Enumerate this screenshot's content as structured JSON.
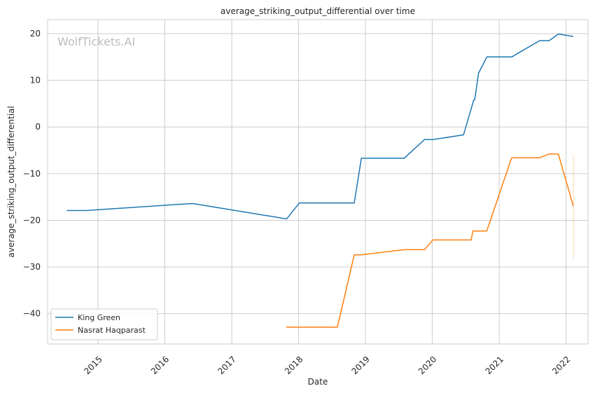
{
  "chart_data": {
    "type": "line",
    "title": "average_striking_output_differential over time",
    "xlabel": "Date",
    "ylabel": "average_striking_output_differential",
    "watermark": "WolfTickets.AI",
    "x_ticks": [
      "2015",
      "2016",
      "2017",
      "2018",
      "2019",
      "2020",
      "2021",
      "2022"
    ],
    "y_ticks": [
      20,
      10,
      0,
      -10,
      -20,
      -30,
      -40
    ],
    "xlim": [
      "2014-04-01",
      "2022-05-01"
    ],
    "ylim": [
      -46.5,
      23
    ],
    "grid": true,
    "legend_position": "lower-left",
    "series": [
      {
        "name": "King Green",
        "color": "#1f77b4",
        "points": [
          [
            "2014-07-15",
            -17.9
          ],
          [
            "2014-11-01",
            -17.9
          ],
          [
            "2016-06-01",
            -16.4
          ],
          [
            "2017-10-28",
            -19.7
          ],
          [
            "2018-01-05",
            -16.3
          ],
          [
            "2018-11-01",
            -16.3
          ],
          [
            "2018-12-10",
            -6.7
          ],
          [
            "2019-08-01",
            -6.7
          ],
          [
            "2019-11-20",
            -2.7
          ],
          [
            "2020-01-05",
            -2.7
          ],
          [
            "2020-06-20",
            -1.7
          ],
          [
            "2020-08-15",
            5.8
          ],
          [
            "2020-08-20",
            5.8
          ],
          [
            "2020-09-10",
            11.5
          ],
          [
            "2020-10-25",
            15.0
          ],
          [
            "2021-03-10",
            15.0
          ],
          [
            "2021-08-10",
            18.5
          ],
          [
            "2021-10-01",
            18.5
          ],
          [
            "2021-11-20",
            19.9
          ],
          [
            "2022-02-10",
            19.4
          ]
        ]
      },
      {
        "name": "Nasrat Haqparast",
        "color": "#ff7f0e",
        "points": [
          [
            "2017-10-25",
            -42.9
          ],
          [
            "2018-08-01",
            -42.9
          ],
          [
            "2018-11-01",
            -27.4
          ],
          [
            "2018-12-10",
            -27.4
          ],
          [
            "2019-08-01",
            -26.3
          ],
          [
            "2019-11-20",
            -26.3
          ],
          [
            "2020-01-05",
            -24.2
          ],
          [
            "2020-08-01",
            -24.2
          ],
          [
            "2020-08-10",
            -22.3
          ],
          [
            "2020-10-25",
            -22.3
          ],
          [
            "2021-03-10",
            -6.6
          ],
          [
            "2021-08-10",
            -6.6
          ],
          [
            "2021-10-01",
            -5.8
          ],
          [
            "2021-11-20",
            -5.8
          ],
          [
            "2022-02-10",
            -17.0
          ]
        ],
        "band": {
          "date": "2022-02-10",
          "low": -28.2,
          "high": -5.8
        }
      }
    ]
  }
}
